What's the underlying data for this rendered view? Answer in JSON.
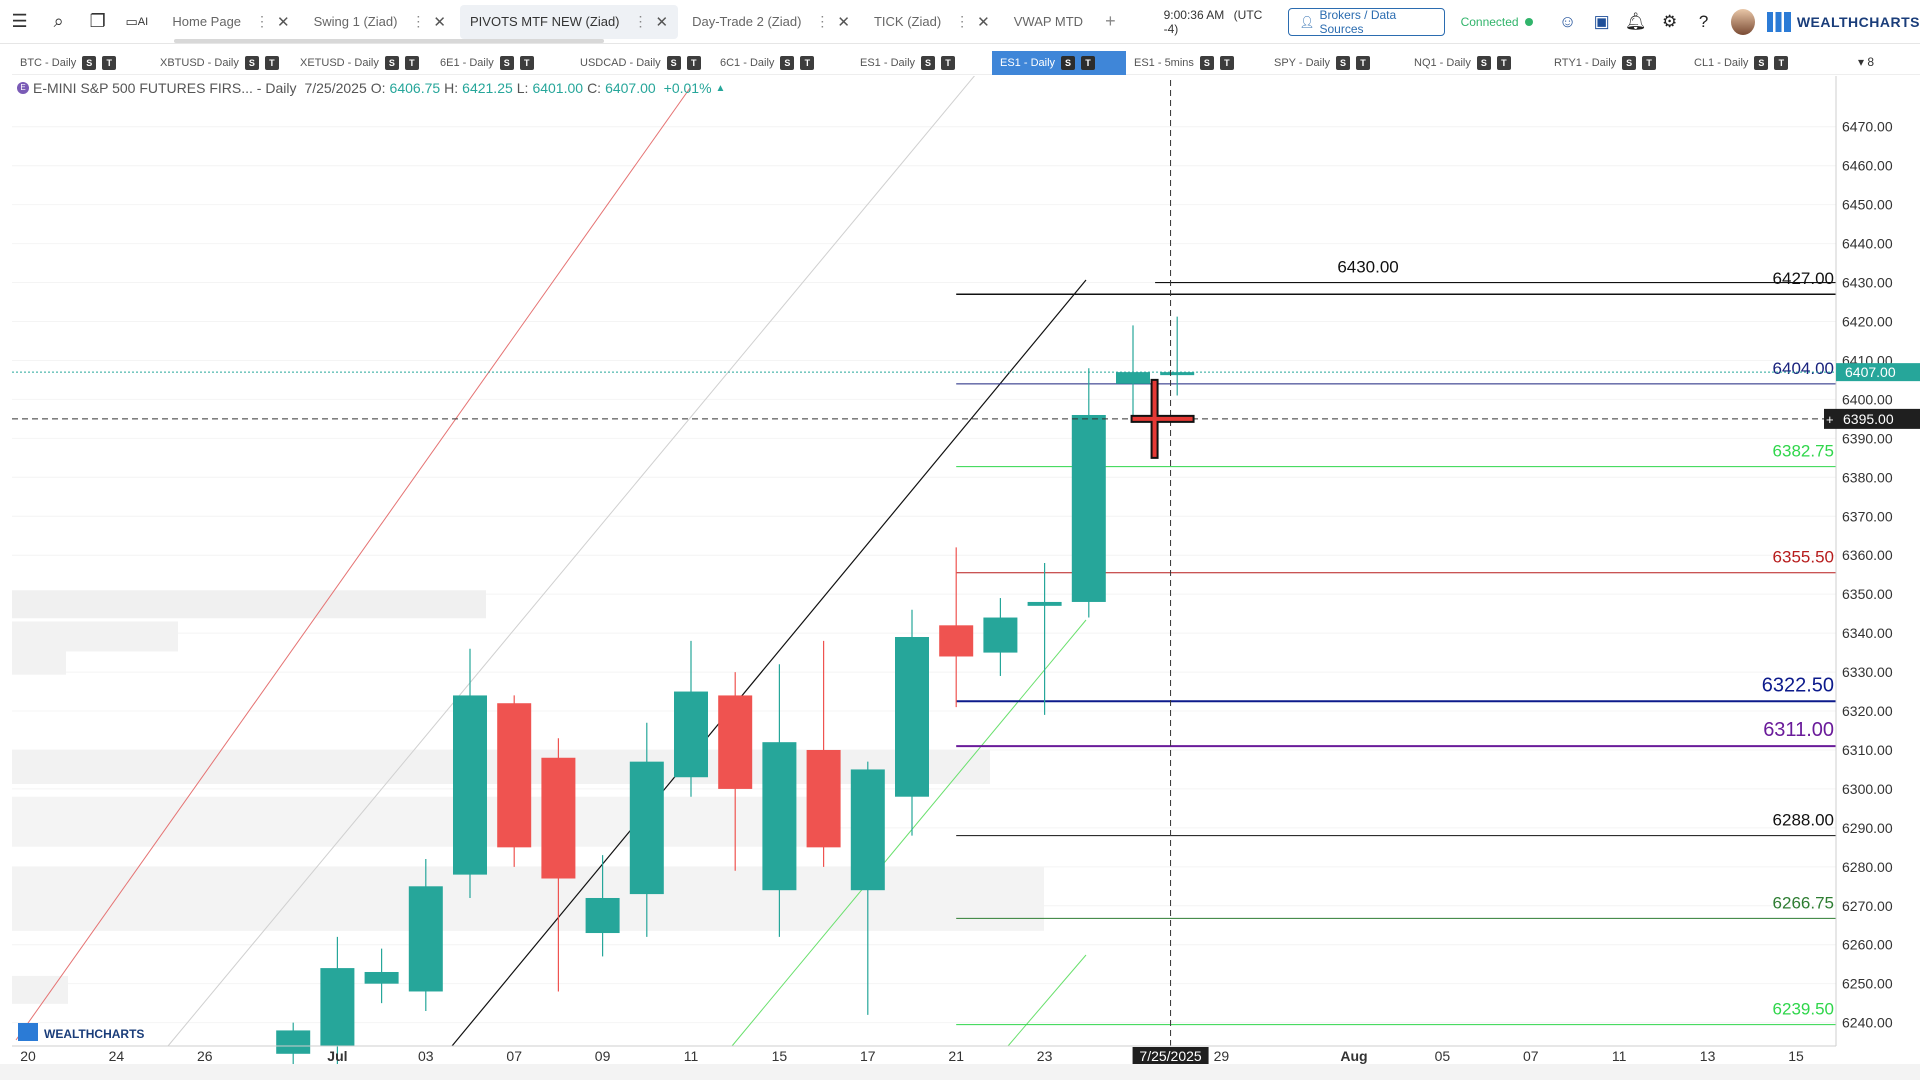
{
  "topbar": {
    "menu_icon": "hamburger-icon",
    "tabs": [
      {
        "label": "Home Page",
        "active": false
      },
      {
        "label": "Swing 1 (Ziad)",
        "active": false
      },
      {
        "label": "PIVOTS MTF NEW (Ziad)",
        "active": true
      },
      {
        "label": "Day-Trade 2 (Ziad)",
        "active": false
      },
      {
        "label": "TICK (Ziad)",
        "active": false
      },
      {
        "label": "VWAP MTD",
        "active": false
      }
    ],
    "ai_label": "AI",
    "clock": "9:00:36 AM",
    "timezone": "(UTC -4)",
    "brokers_label": "Brokers / Data Sources",
    "status": "Connected",
    "brand": "WEALTHCHARTS"
  },
  "symbols": [
    {
      "label": "BTC - Daily",
      "active": false
    },
    {
      "label": "XBTUSD - Daily",
      "active": false
    },
    {
      "label": "XETUSD - Daily",
      "active": false
    },
    {
      "label": "6E1 - Daily",
      "active": false
    },
    {
      "label": "USDCAD - Daily",
      "active": false
    },
    {
      "label": "6C1 - Daily",
      "active": false
    },
    {
      "label": "ES1 - Daily",
      "active": false
    },
    {
      "label": "ES1 - Daily",
      "active": true
    },
    {
      "label": "ES1 - 5mins",
      "active": false
    },
    {
      "label": "SPY - Daily",
      "active": false
    },
    {
      "label": "NQ1 - Daily",
      "active": false
    },
    {
      "label": "RTY1 - Daily",
      "active": false
    },
    {
      "label": "CL1 - Daily",
      "active": false
    }
  ],
  "symbol_box_s": "S",
  "symbol_box_t": "T",
  "strip_more": "▾ 8",
  "legend": {
    "name": "E-MINI S&P 500 FUTURES FIRS... - Daily",
    "date": "7/25/2025",
    "o_label": "O:",
    "o": "6406.75",
    "h_label": "H:",
    "h": "6421.25",
    "l_label": "L:",
    "l": "6401.00",
    "c_label": "C:",
    "c": "6407.00",
    "change": "+0.01%"
  },
  "watermark": "WEALTHCHARTS",
  "chart_data": {
    "type": "candlestick",
    "y_ticks": [
      6240,
      6250,
      6260,
      6270,
      6280,
      6290,
      6300,
      6310,
      6320,
      6330,
      6340,
      6350,
      6360,
      6370,
      6380,
      6390,
      6400,
      6410,
      6420,
      6430,
      6440,
      6450,
      6460,
      6470
    ],
    "ylim": [
      6234,
      6482
    ],
    "x_ticks": [
      {
        "label": "20",
        "i": 0
      },
      {
        "label": "24",
        "i": 2
      },
      {
        "label": "26",
        "i": 4
      },
      {
        "label": "Jul",
        "i": 7
      },
      {
        "label": "03",
        "i": 9
      },
      {
        "label": "07",
        "i": 11
      },
      {
        "label": "09",
        "i": 13
      },
      {
        "label": "11",
        "i": 15
      },
      {
        "label": "15",
        "i": 17
      },
      {
        "label": "17",
        "i": 19
      },
      {
        "label": "21",
        "i": 21
      },
      {
        "label": "23",
        "i": 23
      },
      {
        "label": "29",
        "i": 27
      },
      {
        "label": "Aug",
        "i": 30
      },
      {
        "label": "05",
        "i": 32
      },
      {
        "label": "07",
        "i": 34
      },
      {
        "label": "11",
        "i": 36
      },
      {
        "label": "13",
        "i": 38
      },
      {
        "label": "15",
        "i": 40
      }
    ],
    "candles": [
      {
        "i": 6,
        "o": 6232.0,
        "h": 6240.0,
        "l": 6228.0,
        "c": 6238.0
      },
      {
        "i": 7,
        "o": 6234.0,
        "h": 6262.0,
        "l": 6226.0,
        "c": 6254.0
      },
      {
        "i": 8,
        "o": 6250.0,
        "h": 6259.0,
        "l": 6245.0,
        "c": 6253.0
      },
      {
        "i": 9,
        "o": 6248.0,
        "h": 6282.0,
        "l": 6243.0,
        "c": 6275.0
      },
      {
        "i": 10,
        "o": 6278.0,
        "h": 6336.0,
        "l": 6272.0,
        "c": 6324.0
      },
      {
        "i": 11,
        "o": 6322.0,
        "h": 6324.0,
        "l": 6280.0,
        "c": 6285.0
      },
      {
        "i": 12,
        "o": 6308.0,
        "h": 6313.0,
        "l": 6248.0,
        "c": 6277.0
      },
      {
        "i": 13,
        "o": 6263.0,
        "h": 6283.0,
        "l": 6257.0,
        "c": 6272.0
      },
      {
        "i": 14,
        "o": 6273.0,
        "h": 6317.0,
        "l": 6262.0,
        "c": 6307.0
      },
      {
        "i": 15,
        "o": 6303.0,
        "h": 6338.0,
        "l": 6298.0,
        "c": 6325.0
      },
      {
        "i": 16,
        "o": 6324.0,
        "h": 6330.0,
        "l": 6279.0,
        "c": 6300.0
      },
      {
        "i": 17,
        "o": 6274.0,
        "h": 6332.0,
        "l": 6262.0,
        "c": 6312.0
      },
      {
        "i": 18,
        "o": 6310.0,
        "h": 6338.0,
        "l": 6280.0,
        "c": 6285.0
      },
      {
        "i": 19,
        "o": 6274.0,
        "h": 6307.0,
        "l": 6242.0,
        "c": 6305.0
      },
      {
        "i": 20,
        "o": 6298.0,
        "h": 6346.0,
        "l": 6288.0,
        "c": 6339.0
      },
      {
        "i": 21,
        "o": 6342.0,
        "h": 6362.0,
        "l": 6321.0,
        "c": 6334.0
      },
      {
        "i": 22,
        "o": 6335.0,
        "h": 6349.0,
        "l": 6329.0,
        "c": 6344.0
      },
      {
        "i": 23,
        "o": 6347.0,
        "h": 6358.0,
        "l": 6319.0,
        "c": 6348.0
      },
      {
        "i": 24,
        "o": 6348.0,
        "h": 6408.0,
        "l": 6344.0,
        "c": 6396.0
      },
      {
        "i": 25,
        "o": 6404.0,
        "h": 6419.0,
        "l": 6394.0,
        "c": 6407.0
      },
      {
        "i": 26,
        "o": 6406.75,
        "h": 6421.25,
        "l": 6401.0,
        "c": 6407.0
      }
    ],
    "levels": [
      {
        "label": "6430.00",
        "value": 6430.0,
        "color": "#111111",
        "start_i": 25.5,
        "width": 1.2
      },
      {
        "label": "6427.00",
        "value": 6427.0,
        "color": "#111111",
        "start_i": 21.0,
        "width": 1.5
      },
      {
        "label": "6404.00",
        "value": 6404.0,
        "color": "#1a237e",
        "start_i": 21.0,
        "width": 1.0
      },
      {
        "label": "6382.75",
        "value": 6382.75,
        "color": "#2fd64b",
        "start_i": 21.0,
        "width": 1.0
      },
      {
        "label": "6355.50",
        "value": 6355.5,
        "color": "#b71c1c",
        "start_i": 21.0,
        "width": 1.0
      },
      {
        "label": "6322.50",
        "value": 6322.5,
        "color": "#0d1b8c",
        "start_i": 21.0,
        "width": 2.0
      },
      {
        "label": "6311.00",
        "value": 6311.0,
        "color": "#6a1b9a",
        "start_i": 21.0,
        "width": 2.0
      },
      {
        "label": "6288.00",
        "value": 6288.0,
        "color": "#111111",
        "start_i": 21.0,
        "width": 1.0
      },
      {
        "label": "6266.75",
        "value": 6266.75,
        "color": "#2e7d32",
        "start_i": 21.0,
        "width": 1.0
      },
      {
        "label": "6239.50",
        "value": 6239.5,
        "color": "#2fd64b",
        "start_i": 21.0,
        "width": 1.0
      }
    ],
    "last_price": "6407.00",
    "crosshair_price": "6395.00",
    "crosshair_date": "7/25/2025",
    "crosshair_value": 6395.0,
    "colors": {
      "up": "#26a69a",
      "down": "#ef5350",
      "grid": "#f4f4f4",
      "axis_text": "#333333",
      "last_price_bg": "#26a69a"
    }
  }
}
